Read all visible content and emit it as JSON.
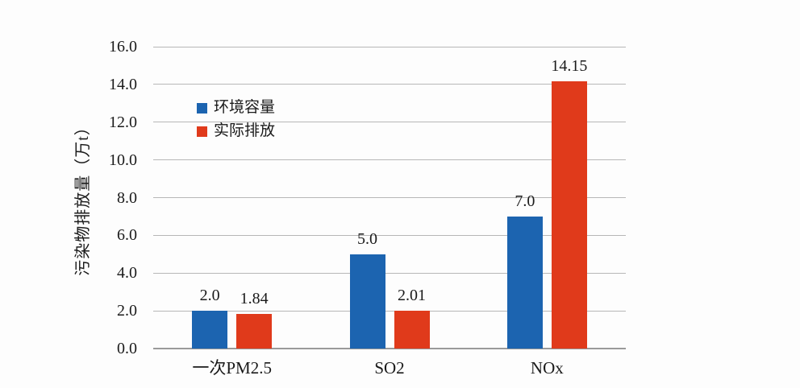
{
  "chart_data": {
    "type": "bar",
    "title": "",
    "ylabel": "污染物排放量（万t）",
    "xlabel": "",
    "categories": [
      "一次PM2.5",
      "SO2",
      "NOx"
    ],
    "series": [
      {
        "name": "环境容量",
        "color": "#1C64B0",
        "values": [
          2.0,
          5.0,
          7.0
        ],
        "value_labels": [
          "2.0",
          "5.0",
          "7.0"
        ]
      },
      {
        "name": "实际排放",
        "color": "#E03A1B",
        "values": [
          1.84,
          2.01,
          14.15
        ],
        "value_labels": [
          "1.84",
          "2.01",
          "14.15"
        ]
      }
    ],
    "ylim": [
      0,
      16
    ],
    "ytick_step": 2,
    "ytick_labels": [
      "0.0",
      "2.0",
      "4.0",
      "6.0",
      "8.0",
      "10.0",
      "12.0",
      "14.0",
      "16.0"
    ],
    "grid": true,
    "legend_position": "inside-upper-left"
  },
  "colors": {
    "background": "#FDFDFD",
    "gridline": "#B7B7B7",
    "baseline": "#9A9A9A",
    "text": "#1A1A1A"
  }
}
